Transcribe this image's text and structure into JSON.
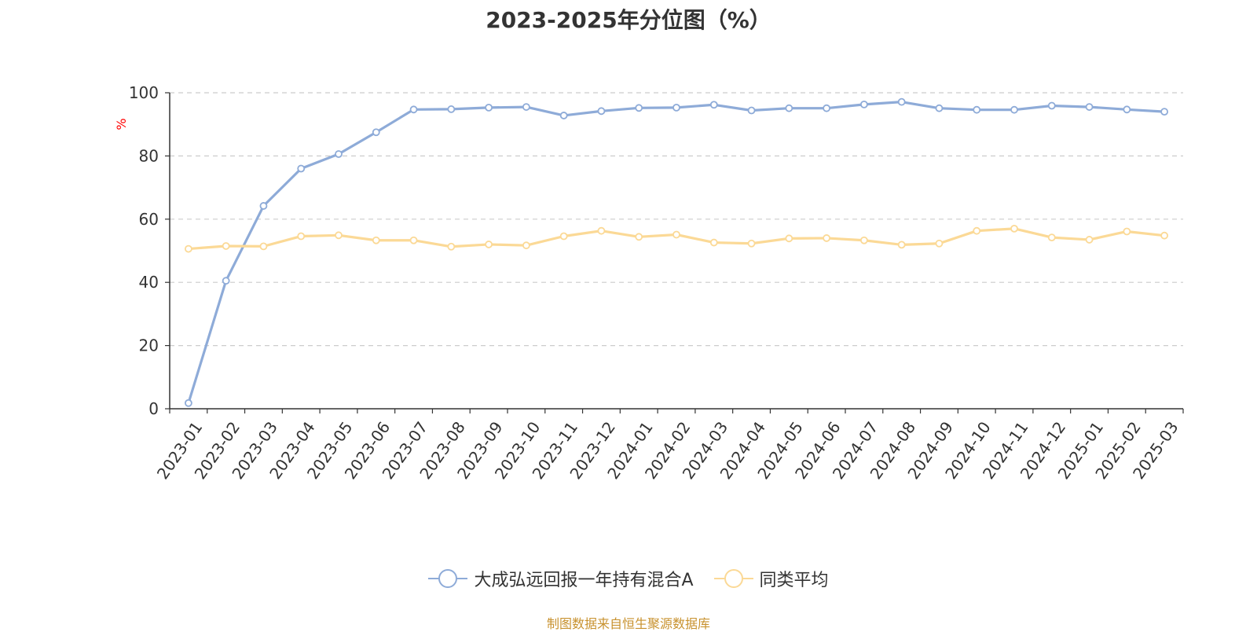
{
  "chart_data": {
    "type": "line",
    "title": "2023-2025年分位图（%）",
    "ylabel": "%",
    "ylim": [
      0,
      100
    ],
    "yticks": [
      0,
      20,
      40,
      60,
      80,
      100
    ],
    "grid": true,
    "legend_position": "bottom",
    "categories": [
      "2023-01",
      "2023-02",
      "2023-03",
      "2023-04",
      "2023-05",
      "2023-06",
      "2023-07",
      "2023-08",
      "2023-09",
      "2023-10",
      "2023-11",
      "2023-12",
      "2024-01",
      "2024-02",
      "2024-03",
      "2024-04",
      "2024-05",
      "2024-06",
      "2024-07",
      "2024-08",
      "2024-09",
      "2024-10",
      "2024-11",
      "2024-12",
      "2025-01",
      "2025-02",
      "2025-03"
    ],
    "series": [
      {
        "name": "大成弘远回报一年持有混合A",
        "color": "#8eabd8",
        "values": [
          1.8,
          40.5,
          64.2,
          76.0,
          80.6,
          87.5,
          94.7,
          94.8,
          95.3,
          95.5,
          92.8,
          94.2,
          95.2,
          95.3,
          96.2,
          94.4,
          95.1,
          95.1,
          96.3,
          97.1,
          95.1,
          94.6,
          94.6,
          95.9,
          95.5,
          94.7,
          94.0
        ]
      },
      {
        "name": "同类平均",
        "color": "#fbd996",
        "values": [
          50.6,
          51.5,
          51.4,
          54.6,
          54.9,
          53.3,
          53.3,
          51.3,
          52.0,
          51.7,
          54.6,
          56.3,
          54.4,
          55.1,
          52.6,
          52.3,
          53.9,
          54.0,
          53.3,
          51.9,
          52.3,
          56.3,
          57.0,
          54.2,
          53.5,
          56.1,
          54.8
        ]
      }
    ]
  },
  "source_note": "制图数据来自恒生聚源数据库"
}
